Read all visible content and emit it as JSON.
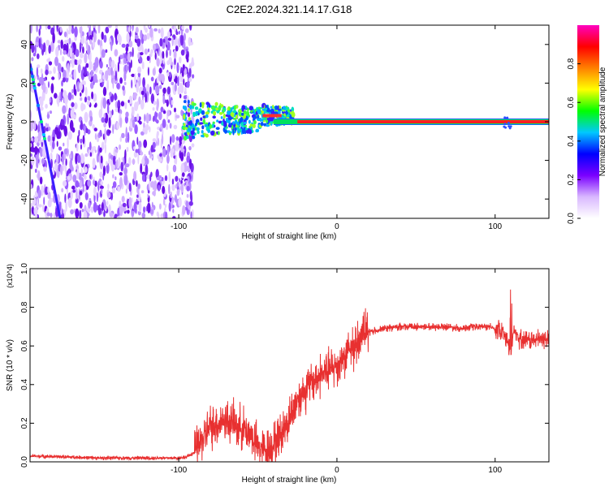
{
  "figure": {
    "title": "C2E2.2024.321.14.17.G18"
  },
  "chart_data": [
    {
      "type": "heatmap",
      "xlabel": "Height of straight line (km)",
      "ylabel": "Frequency (Hz)",
      "xlim": [
        -194,
        134
      ],
      "ylim": [
        -50,
        50
      ],
      "x_ticks": [
        -100,
        0,
        100
      ],
      "y_ticks": [
        -40,
        -20,
        0,
        20,
        40
      ],
      "colorbar": {
        "label": "Normalized spectral amplitude",
        "range": [
          0,
          1
        ],
        "ticks": [
          0.0,
          0.2,
          0.4,
          0.6,
          0.8
        ],
        "colormap": [
          "#ffffff",
          "#d9b8ff",
          "#7a00ff",
          "#0000ff",
          "#00c8ff",
          "#00ff00",
          "#ffff00",
          "#ff8000",
          "#ff0000",
          "#ff00c0"
        ]
      },
      "features": {
        "noise_region_x": [
          -194,
          -93
        ],
        "diagonal_line": {
          "from": [
            -194,
            30
          ],
          "to": [
            -175,
            -50
          ]
        },
        "tone_line_y": 0,
        "tone_line_start_x": -45
      },
      "grid": false
    },
    {
      "type": "line",
      "xlabel": "Height of straight line (km)",
      "ylabel": "SNR (10 * v/v)",
      "y_multiplier": "(x10^4)",
      "xlim": [
        -194,
        134
      ],
      "ylim": [
        0,
        1.0
      ],
      "x_ticks": [
        -100,
        0,
        100
      ],
      "y_ticks": [
        0.0,
        0.2,
        0.4,
        0.6,
        0.8,
        1.0
      ],
      "color": "#e83030",
      "series": [
        {
          "x": [
            -194,
            -170,
            -150,
            -130,
            -110,
            -100,
            -95,
            -90,
            -85,
            -80,
            -75,
            -70,
            -65,
            -60,
            -55,
            -50,
            -45,
            -40,
            -35,
            -30,
            -25,
            -20,
            -15,
            -10,
            -5,
            0,
            5,
            10,
            15,
            20,
            30,
            40,
            50,
            60,
            70,
            80,
            90,
            95,
            100,
            105,
            108,
            110,
            112,
            115,
            120,
            125,
            134
          ],
          "values": [
            0.03,
            0.025,
            0.02,
            0.02,
            0.02,
            0.02,
            0.025,
            0.05,
            0.12,
            0.18,
            0.2,
            0.22,
            0.19,
            0.18,
            0.15,
            0.08,
            0.06,
            0.09,
            0.15,
            0.22,
            0.33,
            0.37,
            0.42,
            0.45,
            0.47,
            0.5,
            0.55,
            0.6,
            0.64,
            0.67,
            0.69,
            0.7,
            0.7,
            0.7,
            0.7,
            0.69,
            0.7,
            0.7,
            0.69,
            0.68,
            0.62,
            0.55,
            0.7,
            0.64,
            0.63,
            0.63,
            0.64
          ]
        }
      ]
    }
  ]
}
